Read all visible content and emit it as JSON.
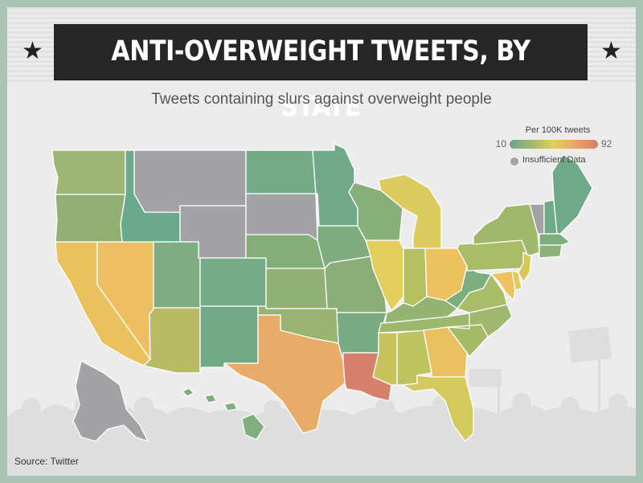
{
  "header": {
    "title": "ANTI-OVERWEIGHT TWEETS, BY STATE",
    "subtitle": "Tweets containing slurs against overweight people"
  },
  "legend": {
    "title": "Per 100K tweets",
    "min": "10",
    "max": "92",
    "insufficient_label": "Insufficient Data",
    "colors": [
      "#6aa889",
      "#9fb86f",
      "#e3cf5a",
      "#e7a46a",
      "#d97c6a"
    ],
    "insufficient_color": "#a3a3a5"
  },
  "footer": {
    "source": "Source: Twitter"
  },
  "map": {
    "states": [
      {
        "code": "WA",
        "color": "#9db673"
      },
      {
        "code": "OR",
        "color": "#8fb072"
      },
      {
        "code": "CA",
        "color": "#e9c25e"
      },
      {
        "code": "NV",
        "color": "#eebf62"
      },
      {
        "code": "ID",
        "color": "#6ba98e"
      },
      {
        "code": "MT",
        "color": "#a3a3a5"
      },
      {
        "code": "WY",
        "color": "#a3a3a5"
      },
      {
        "code": "UT",
        "color": "#7dad80"
      },
      {
        "code": "CO",
        "color": "#75ab86"
      },
      {
        "code": "AZ",
        "color": "#b8bb62"
      },
      {
        "code": "NM",
        "color": "#72a985"
      },
      {
        "code": "ND",
        "color": "#74aa86"
      },
      {
        "code": "SD",
        "color": "#a3a3a5"
      },
      {
        "code": "NE",
        "color": "#85ad7a"
      },
      {
        "code": "KS",
        "color": "#8fb174"
      },
      {
        "code": "OK",
        "color": "#99b470"
      },
      {
        "code": "TX",
        "color": "#e9ac68"
      },
      {
        "code": "MN",
        "color": "#70aa88"
      },
      {
        "code": "IA",
        "color": "#7eac7f"
      },
      {
        "code": "MO",
        "color": "#89ae77"
      },
      {
        "code": "AR",
        "color": "#78ab82"
      },
      {
        "code": "LA",
        "color": "#d7816c"
      },
      {
        "code": "WI",
        "color": "#87af78"
      },
      {
        "code": "IL",
        "color": "#e1ce5c"
      },
      {
        "code": "MI",
        "color": "#dccb5e"
      },
      {
        "code": "IN",
        "color": "#b4c060"
      },
      {
        "code": "OH",
        "color": "#ecc25f"
      },
      {
        "code": "KY",
        "color": "#94b46f"
      },
      {
        "code": "TN",
        "color": "#9db86c"
      },
      {
        "code": "MS",
        "color": "#c8c45d"
      },
      {
        "code": "AL",
        "color": "#bec460"
      },
      {
        "code": "GA",
        "color": "#eac15f"
      },
      {
        "code": "FL",
        "color": "#d3c95c"
      },
      {
        "code": "SC",
        "color": "#a5ba69"
      },
      {
        "code": "NC",
        "color": "#9fb86d"
      },
      {
        "code": "VA",
        "color": "#a9bc67"
      },
      {
        "code": "WV",
        "color": "#7cae80"
      },
      {
        "code": "PA",
        "color": "#a9bd66"
      },
      {
        "code": "NY",
        "color": "#9fb86d"
      },
      {
        "code": "ME",
        "color": "#6eaa89"
      },
      {
        "code": "VT",
        "color": "#a3a3a5"
      },
      {
        "code": "NH",
        "color": "#6faa88"
      },
      {
        "code": "MA",
        "color": "#7cae80"
      },
      {
        "code": "CT",
        "color": "#8db177"
      },
      {
        "code": "NJ",
        "color": "#d8c85c"
      },
      {
        "code": "MD",
        "color": "#eec35f"
      },
      {
        "code": "DE",
        "color": "#e2cb5d"
      },
      {
        "code": "AK",
        "color": "#a3a3a5"
      },
      {
        "code": "HI",
        "color": "#7fae80"
      }
    ]
  }
}
